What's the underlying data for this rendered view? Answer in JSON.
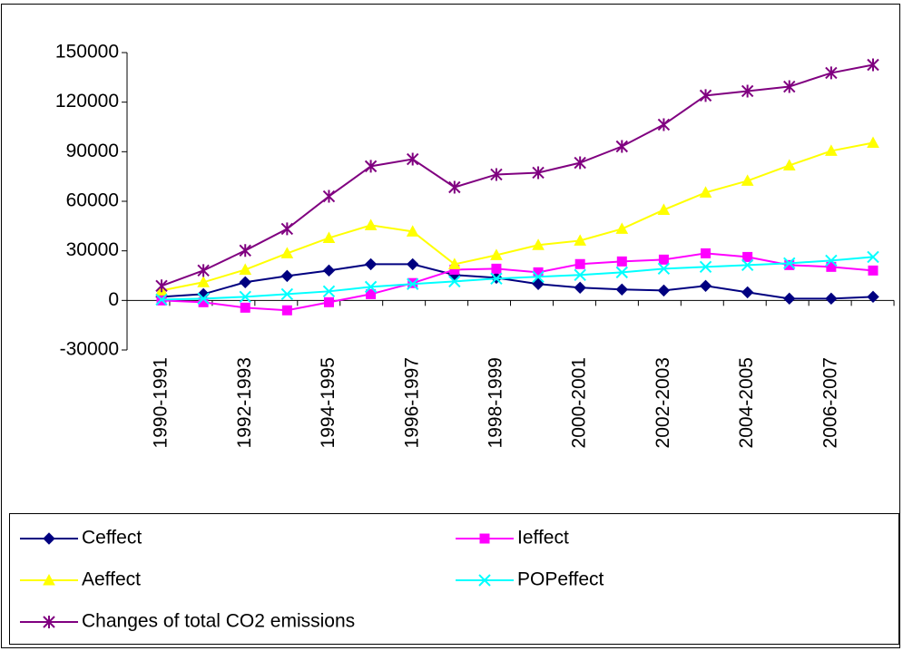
{
  "chart_data": {
    "type": "line",
    "categories": [
      "1990-1991",
      null,
      "1992-1993",
      null,
      "1994-1995",
      null,
      "1996-1997",
      null,
      "1998-1999",
      null,
      "2000-2001",
      null,
      "2002-2003",
      null,
      "2004-2005",
      null,
      "2006-2007",
      null
    ],
    "ylim": [
      -30000,
      150000
    ],
    "yticks": [
      -30000,
      0,
      30000,
      60000,
      90000,
      120000,
      150000
    ],
    "grid": false,
    "legend": "bottom",
    "series": [
      {
        "name": "Ceffect",
        "color": "#000080",
        "marker": "diamond",
        "values": [
          2200,
          3800,
          11000,
          14800,
          18100,
          21900,
          21900,
          15400,
          13700,
          9900,
          7700,
          6600,
          6000,
          8800,
          4900,
          1100,
          1100,
          2200
        ]
      },
      {
        "name": "Ieffect",
        "color": "#ff00ff",
        "marker": "square",
        "values": [
          0,
          -1100,
          -4400,
          -6000,
          -1100,
          3800,
          10500,
          18600,
          19200,
          17000,
          22000,
          23600,
          24700,
          28500,
          26300,
          21400,
          20300,
          18100
        ]
      },
      {
        "name": "Aeffect",
        "color": "#ffff00",
        "marker": "triangle",
        "values": [
          6000,
          11000,
          18600,
          28500,
          37800,
          45500,
          41700,
          21900,
          27400,
          33500,
          36200,
          43300,
          54800,
          65300,
          72400,
          81700,
          90500,
          95400
        ]
      },
      {
        "name": "POPeffect",
        "color": "#00ffff",
        "marker": "x",
        "values": [
          500,
          1100,
          2200,
          3800,
          5500,
          8200,
          9900,
          11500,
          13200,
          14300,
          15400,
          17000,
          19200,
          20300,
          21400,
          22500,
          24100,
          26300
        ]
      },
      {
        "name": "Changes of total CO2 emissions",
        "color": "#800080",
        "marker": "star",
        "values": [
          8800,
          18100,
          30200,
          43300,
          63000,
          81200,
          85500,
          68500,
          76200,
          77300,
          83300,
          93200,
          106400,
          124000,
          126700,
          129400,
          137700,
          142600
        ]
      }
    ]
  }
}
